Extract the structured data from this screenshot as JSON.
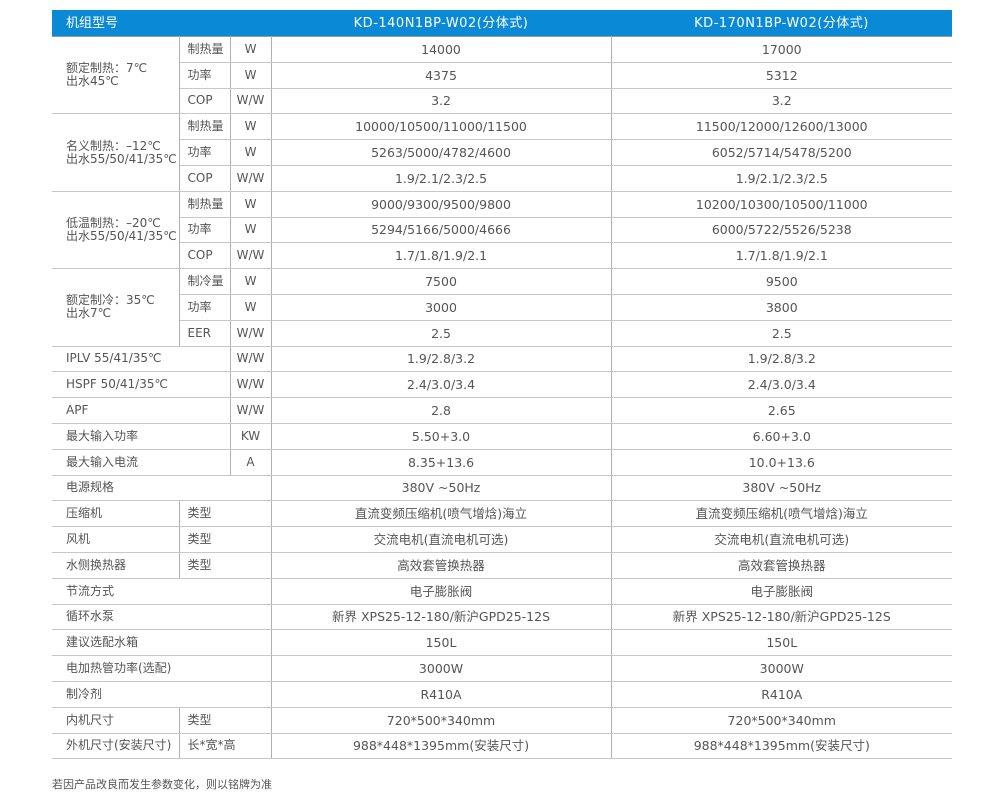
{
  "header": {
    "label": "机组型号",
    "models": [
      "KD-140N1BP-W02(分体式)",
      "KD-170N1BP-W02(分体式)"
    ]
  },
  "groups": [
    {
      "label": [
        "额定制热：7℃",
        "出水45℃"
      ],
      "rows": [
        {
          "sub": "制热量",
          "unit": "W",
          "v": [
            "14000",
            "17000"
          ]
        },
        {
          "sub": "功率",
          "unit": "W",
          "v": [
            "4375",
            "5312"
          ]
        },
        {
          "sub": "COP",
          "unit": "W/W",
          "v": [
            "3.2",
            "3.2"
          ]
        }
      ]
    },
    {
      "label": [
        "名义制热：–12℃",
        "出水55/50/41/35℃"
      ],
      "rows": [
        {
          "sub": "制热量",
          "unit": "W",
          "v": [
            "10000/10500/11000/11500",
            "11500/12000/12600/13000"
          ]
        },
        {
          "sub": "功率",
          "unit": "W",
          "v": [
            "5263/5000/4782/4600",
            "6052/5714/5478/5200"
          ]
        },
        {
          "sub": "COP",
          "unit": "W/W",
          "v": [
            "1.9/2.1/2.3/2.5",
            "1.9/2.1/2.3/2.5"
          ]
        }
      ]
    },
    {
      "label": [
        "低温制热：–20℃",
        "出水55/50/41/35℃"
      ],
      "rows": [
        {
          "sub": "制热量",
          "unit": "W",
          "v": [
            "9000/9300/9500/9800",
            "10200/10300/10500/11000"
          ]
        },
        {
          "sub": "功率",
          "unit": "W",
          "v": [
            "5294/5166/5000/4666",
            "6000/5722/5526/5238"
          ]
        },
        {
          "sub": "COP",
          "unit": "W/W",
          "v": [
            "1.7/1.8/1.9/2.1",
            "1.7/1.8/1.9/2.1"
          ]
        }
      ]
    },
    {
      "label": [
        "额定制冷：35℃",
        "出水7℃"
      ],
      "rows": [
        {
          "sub": "制冷量",
          "unit": "W",
          "v": [
            "7500",
            "9500"
          ]
        },
        {
          "sub": "功率",
          "unit": "W",
          "v": [
            "3000",
            "3800"
          ]
        },
        {
          "sub": "EER",
          "unit": "W/W",
          "v": [
            "2.5",
            "2.5"
          ]
        }
      ]
    }
  ],
  "rows": [
    {
      "type": "lu",
      "label": "IPLV  55/41/35℃",
      "unit": "W/W",
      "v": [
        "1.9/2.8/3.2",
        "1.9/2.8/3.2"
      ]
    },
    {
      "type": "lu",
      "label": "HSPF  50/41/35℃",
      "unit": "W/W",
      "v": [
        "2.4/3.0/3.4",
        "2.4/3.0/3.4"
      ]
    },
    {
      "type": "lu",
      "label": "APF",
      "unit": "W/W",
      "v": [
        "2.8",
        "2.65"
      ]
    },
    {
      "type": "lu",
      "label": "最大输入功率",
      "unit": "KW",
      "v": [
        "5.50+3.0",
        "6.60+3.0"
      ]
    },
    {
      "type": "lu",
      "label": "最大输入电流",
      "unit": "A",
      "v": [
        "8.35+13.6",
        "10.0+13.6"
      ]
    },
    {
      "type": "l",
      "label": "电源规格",
      "v": [
        "380V ~50Hz",
        "380V ~50Hz"
      ]
    },
    {
      "type": "ls",
      "label": "压缩机",
      "sub": "类型",
      "v": [
        "直流变频压缩机(喷气增焓)海立",
        "直流变频压缩机(喷气增焓)海立"
      ]
    },
    {
      "type": "ls",
      "label": "风机",
      "sub": "类型",
      "v": [
        "交流电机(直流电机可选)",
        "交流电机(直流电机可选)"
      ]
    },
    {
      "type": "ls",
      "label": "水侧换热器",
      "sub": "类型",
      "v": [
        "高效套管换热器",
        "高效套管换热器"
      ]
    },
    {
      "type": "l",
      "label": "节流方式",
      "v": [
        "电子膨胀阀",
        "电子膨胀阀"
      ]
    },
    {
      "type": "l",
      "label": "循环水泵",
      "v": [
        "新界 XPS25-12-180/新沪GPD25-12S",
        "新界 XPS25-12-180/新沪GPD25-12S"
      ]
    },
    {
      "type": "l",
      "label": "建议选配水箱",
      "v": [
        "150L",
        "150L"
      ]
    },
    {
      "type": "l",
      "label": "电加热管功率(选配)",
      "v": [
        "3000W",
        "3000W"
      ]
    },
    {
      "type": "l",
      "label": "制冷剂",
      "v": [
        "R410A",
        "R410A"
      ]
    },
    {
      "type": "ls",
      "label": "内机尺寸",
      "sub": "类型",
      "v": [
        "720*500*340mm",
        "720*500*340mm"
      ]
    },
    {
      "type": "ls",
      "label": "外机尺寸(安装尺寸)",
      "sub": "长*宽*高",
      "v": [
        "988*448*1395mm(安装尺寸)",
        "988*448*1395mm(安装尺寸)"
      ]
    }
  ],
  "footnote": "若因产品改良而发生参数变化，则以铭牌为准",
  "colors": {
    "header_bg": "#0a8ad6"
  }
}
